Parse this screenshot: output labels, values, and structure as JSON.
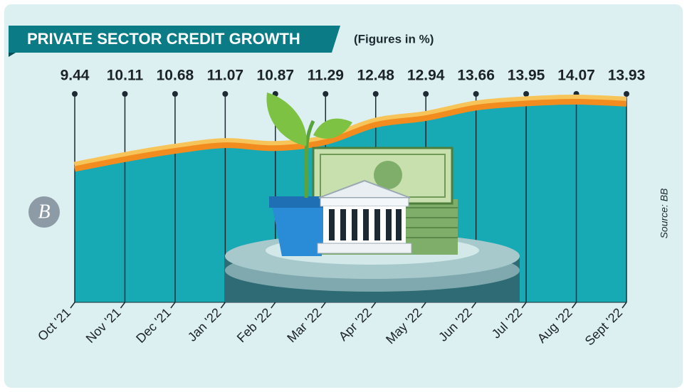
{
  "chart_data": {
    "type": "area",
    "title": "PRIVATE SECTOR CREDIT GROWTH",
    "subtitle": "(Figures in %)",
    "source": "Source: BB",
    "logo": "B",
    "categories": [
      "Oct '21",
      "Nov '21",
      "Dec '21",
      "Jan '22",
      "Feb '22",
      "Mar '22",
      "Apr '22",
      "May '22",
      "Jun '22",
      "Jul '22",
      "Aug '22",
      "Sept '22"
    ],
    "values": [
      9.44,
      10.11,
      10.68,
      11.07,
      10.87,
      11.29,
      12.48,
      12.94,
      13.66,
      13.95,
      14.07,
      13.93
    ],
    "value_labels": [
      "9.44",
      "10.11",
      "10.68",
      "11.07",
      "10.87",
      "11.29",
      "12.48",
      "12.94",
      "13.66",
      "13.95",
      "14.07",
      "13.93"
    ],
    "color": "#17a9b4",
    "line_color": "#f28c1e"
  }
}
